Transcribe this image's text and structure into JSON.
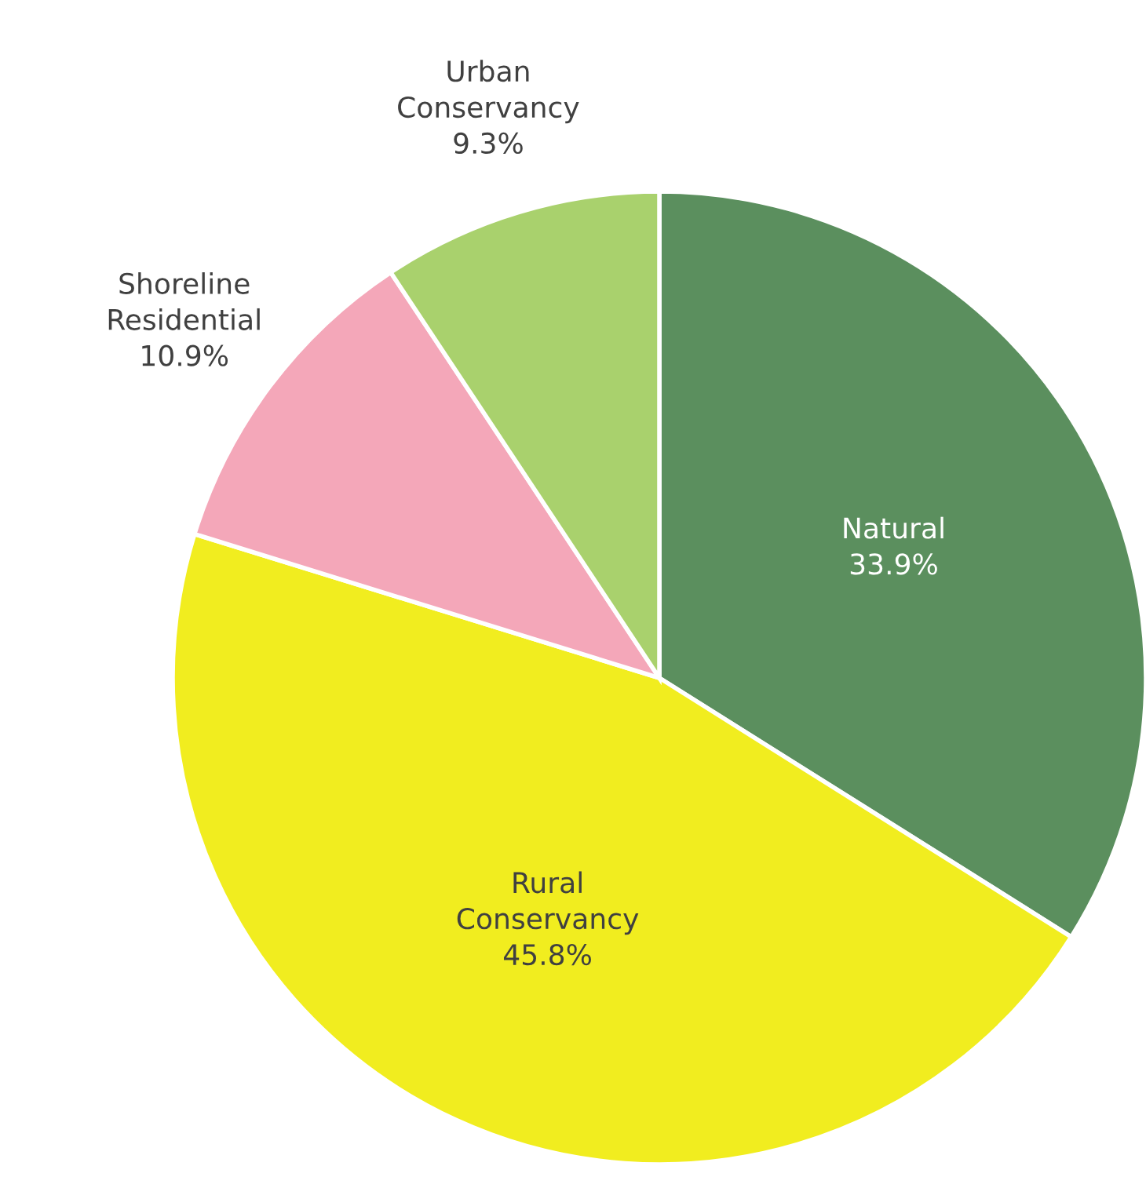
{
  "chart_data": {
    "type": "pie",
    "categories": [
      "Natural",
      "Rural\nConservancy",
      "Shoreline\nResidential",
      "Urban\nConservancy"
    ],
    "values": [
      33.9,
      45.8,
      10.9,
      9.3
    ],
    "colors": [
      "#5b8f5e",
      "#f1ed1f",
      "#f4a7b9",
      "#a9d16d"
    ],
    "value_labels": [
      "33.9%",
      "45.8%",
      "10.9%",
      "9.3%"
    ]
  }
}
